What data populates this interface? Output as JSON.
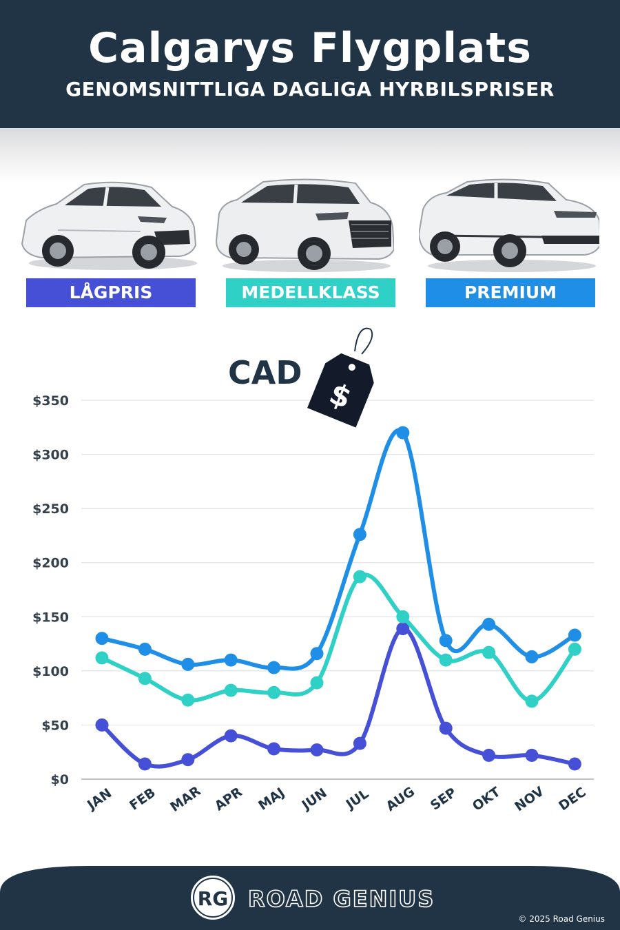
{
  "header": {
    "title": "Calgarys Flygplats",
    "subtitle": "GENOMSNITTLIGA DAGLIGA HYRBILSPRISER"
  },
  "classes": [
    {
      "label": "LÅGPRIS",
      "color": "#4550d6"
    },
    {
      "label": "MEDELLKLASS",
      "color": "#2fd0c6"
    },
    {
      "label": "PREMIUM",
      "color": "#1e8ee6"
    }
  ],
  "chart_data": {
    "type": "line",
    "currency_label": "CAD",
    "tag_symbol": "$",
    "categories": [
      "JAN",
      "FEB",
      "MAR",
      "APR",
      "MAJ",
      "JUN",
      "JUL",
      "AUG",
      "SEP",
      "OKT",
      "NOV",
      "DEC"
    ],
    "ylim": [
      0,
      350
    ],
    "yticks": [
      0,
      50,
      100,
      150,
      200,
      250,
      300,
      350
    ],
    "ytick_labels": [
      "$0",
      "$50",
      "$100",
      "$150",
      "$200",
      "$250",
      "$300",
      "$350"
    ],
    "grid": true,
    "series": [
      {
        "name": "LÅGPRIS",
        "color": "#4550d6",
        "values": [
          50,
          14,
          18,
          40,
          28,
          27,
          33,
          139,
          47,
          22,
          22,
          14
        ]
      },
      {
        "name": "MEDELLKLASS",
        "color": "#2fd0c6",
        "values": [
          112,
          93,
          73,
          82,
          80,
          89,
          187,
          150,
          110,
          117,
          72,
          120
        ]
      },
      {
        "name": "PREMIUM",
        "color": "#1e8ee6",
        "values": [
          130,
          120,
          106,
          110,
          103,
          116,
          226,
          320,
          128,
          143,
          113,
          133
        ]
      }
    ]
  },
  "footer": {
    "brand": "ROAD GENIUS",
    "logo_text": "RG",
    "copyright": "© 2025 Road Genius"
  }
}
